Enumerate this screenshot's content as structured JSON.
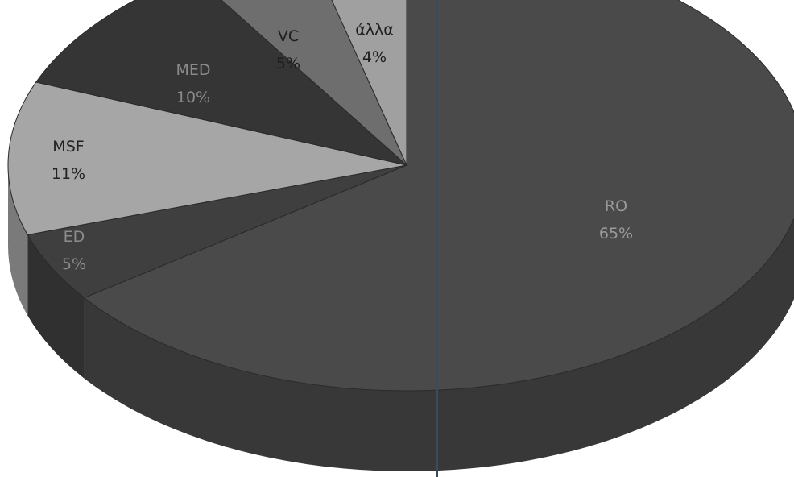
{
  "chart_data": {
    "type": "pie",
    "style": "3d",
    "slices": [
      {
        "label": "RO",
        "value": 65,
        "display": "65%",
        "color": "#4a4a4a",
        "side": "#383838",
        "text": "#9a9a9a"
      },
      {
        "label": "ED",
        "value": 5,
        "display": "5%",
        "color": "#3f3f3f",
        "side": "#303030",
        "text": "#8c8c8c"
      },
      {
        "label": "MSF",
        "value": 11,
        "display": "11%",
        "color": "#a6a6a6",
        "side": "#7a7a7a",
        "text": "#222222"
      },
      {
        "label": "MED",
        "value": 10,
        "display": "10%",
        "color": "#353535",
        "side": "#282828",
        "text": "#8a8a8a"
      },
      {
        "label": "VC",
        "value": 5,
        "display": "5%",
        "color": "#6e6e6e",
        "side": "#545454",
        "text": "#1e1e1e"
      },
      {
        "label": "άλλα",
        "value": 4,
        "display": "4%",
        "color": "#a0a0a0",
        "side": "#7c7c7c",
        "text": "#1e1e1e"
      }
    ]
  }
}
